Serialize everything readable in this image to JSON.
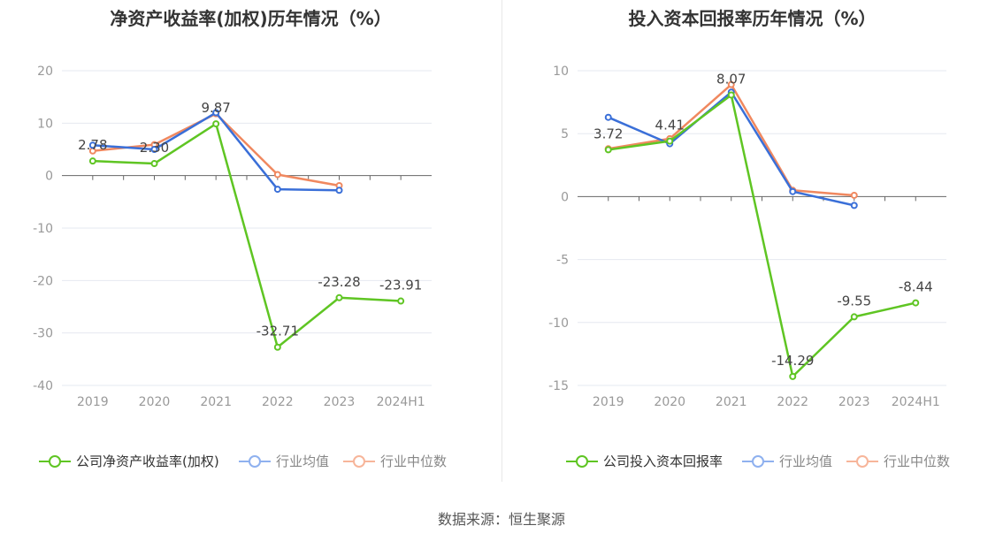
{
  "source_label": "数据来源：恒生聚源",
  "colors": {
    "company": "#5fc523",
    "avg": "#3a6fd8",
    "median": "#f0885f",
    "avg_legend": "#8fb1ef",
    "median_legend": "#f7b59a",
    "grid": "#e6e8f0",
    "axis": "#666666",
    "tick": "#999999",
    "label": "#444444"
  },
  "chart_data": [
    {
      "type": "line",
      "title": "净资产收益率(加权)历年情况（%）",
      "categories": [
        "2019",
        "2020",
        "2021",
        "2022",
        "2023",
        "2024H1"
      ],
      "ylim": [
        -40,
        20
      ],
      "yticks": [
        20,
        10,
        0,
        -10,
        -20,
        -30,
        -40
      ],
      "grid": true,
      "legend_position": "bottom",
      "series": [
        {
          "name": "公司净资产收益率(加权)",
          "role": "company",
          "values": [
            2.78,
            2.3,
            9.87,
            -32.71,
            -23.28,
            -23.91
          ],
          "data_labels": [
            "2.78",
            "2.30",
            "9.87",
            "-32.71",
            "-23.28",
            "-23.91"
          ]
        },
        {
          "name": "行业均值",
          "role": "avg",
          "values": [
            5.8,
            5.0,
            12.0,
            -2.6,
            -2.8,
            null
          ]
        },
        {
          "name": "行业中位数",
          "role": "median",
          "values": [
            4.7,
            5.9,
            11.8,
            0.2,
            -1.9,
            null
          ]
        }
      ]
    },
    {
      "type": "line",
      "title": "投入资本回报率历年情况（%）",
      "categories": [
        "2019",
        "2020",
        "2021",
        "2022",
        "2023",
        "2024H1"
      ],
      "ylim": [
        -15,
        10
      ],
      "yticks": [
        10,
        5,
        0,
        -5,
        -10,
        -15
      ],
      "grid": true,
      "legend_position": "bottom",
      "series": [
        {
          "name": "公司投入资本回报率",
          "role": "company",
          "values": [
            3.72,
            4.41,
            8.07,
            -14.29,
            -9.55,
            -8.44
          ],
          "data_labels": [
            "3.72",
            "4.41",
            "8.07",
            "-14.29",
            "-9.55",
            "-8.44"
          ]
        },
        {
          "name": "行业均值",
          "role": "avg",
          "values": [
            6.3,
            4.2,
            8.3,
            0.4,
            -0.7,
            null
          ]
        },
        {
          "name": "行业中位数",
          "role": "median",
          "values": [
            3.8,
            4.6,
            8.9,
            0.5,
            0.1,
            null
          ]
        }
      ]
    }
  ]
}
